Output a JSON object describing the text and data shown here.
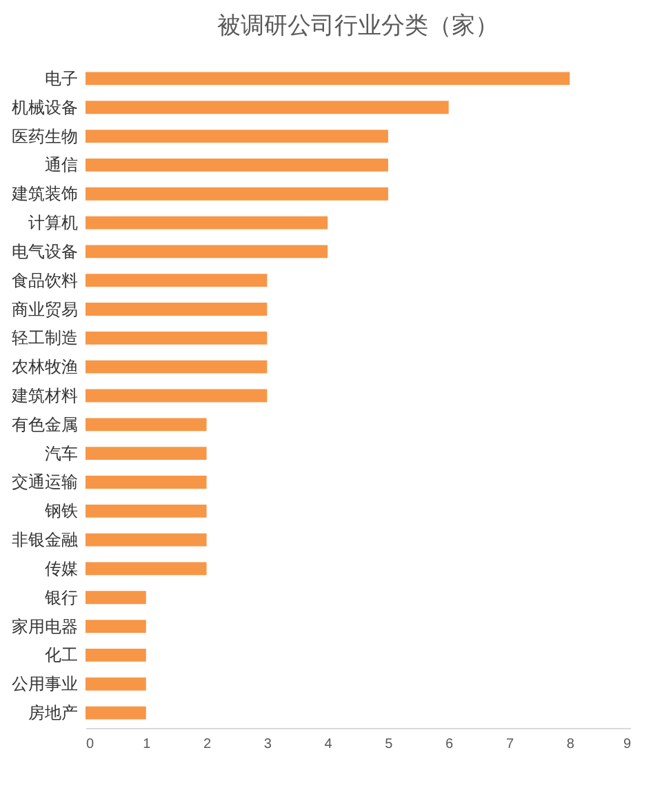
{
  "chart_data": {
    "type": "bar",
    "orientation": "horizontal",
    "title": "被调研公司行业分类（家）",
    "categories": [
      "电子",
      "机械设备",
      "医药生物",
      "通信",
      "建筑装饰",
      "计算机",
      "电气设备",
      "食品饮料",
      "商业贸易",
      "轻工制造",
      "农林牧渔",
      "建筑材料",
      "有色金属",
      "汽车",
      "交通运输",
      "钢铁",
      "非银金融",
      "传媒",
      "银行",
      "家用电器",
      "化工",
      "公用事业",
      "房地产"
    ],
    "values": [
      8,
      6,
      5,
      5,
      5,
      4,
      4,
      3,
      3,
      3,
      3,
      3,
      2,
      2,
      2,
      2,
      2,
      2,
      1,
      1,
      1,
      1,
      1
    ],
    "color": "#f79646",
    "xlim": [
      0,
      9
    ],
    "xticks": [
      0,
      1,
      2,
      3,
      4,
      5,
      6,
      7,
      8,
      9
    ],
    "grid": false
  }
}
